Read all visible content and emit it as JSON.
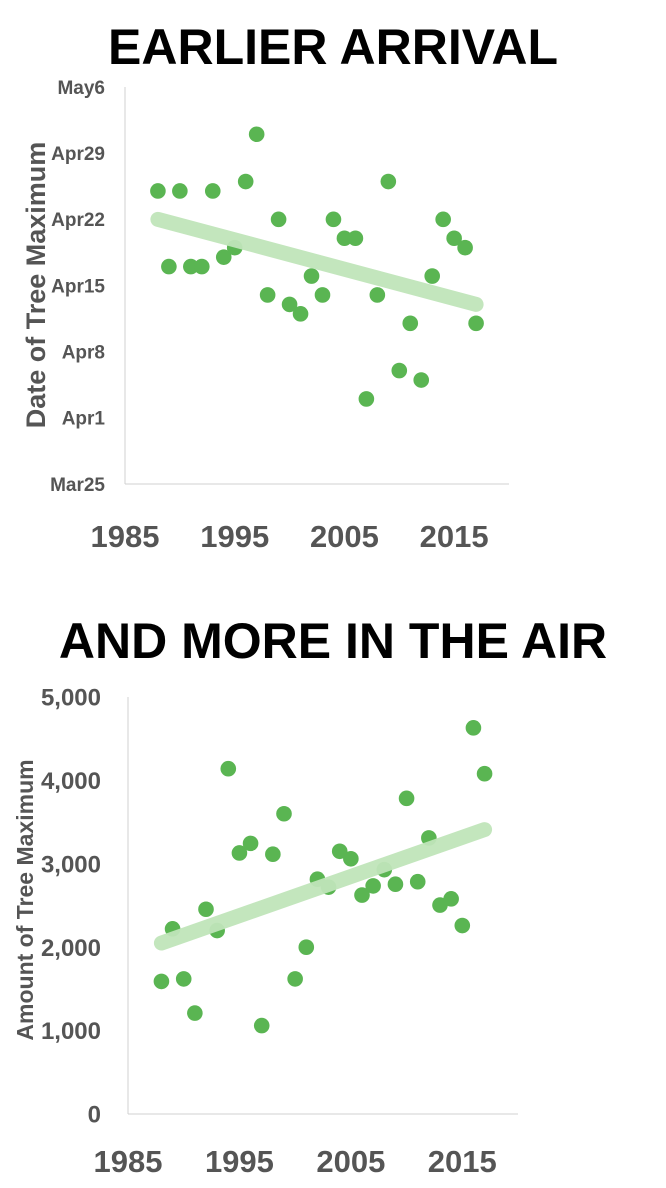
{
  "colors": {
    "point": "#5ab552",
    "trend": "#c0e5b9",
    "axis": "#d0d0d0",
    "text": "#555555",
    "title": "#000000"
  },
  "chart_data": [
    {
      "type": "scatter",
      "title": "EARLIER ARRIVAL",
      "ylabel": "Date of Tree Maximum",
      "xlabel": "",
      "xlim": [
        1985,
        2020
      ],
      "x_ticks": [
        "1985",
        "1995",
        "2005",
        "2015"
      ],
      "y_ticks": [
        "Mar25",
        "Apr1",
        "Apr8",
        "Apr15",
        "Apr22",
        "Apr29",
        "May6"
      ],
      "ylim": [
        "Mar25",
        "May6"
      ],
      "grid": false,
      "x": [
        1988,
        1989,
        1990,
        1991,
        1992,
        1993,
        1994,
        1995,
        1996,
        1997,
        1998,
        1999,
        2000,
        2001,
        2002,
        2003,
        2004,
        2005,
        2006,
        2007,
        2008,
        2009,
        2010,
        2011,
        2012,
        2013,
        2014,
        2015,
        2016,
        2017
      ],
      "y": [
        "Apr25",
        "Apr17",
        "Apr25",
        "Apr17",
        "Apr17",
        "Apr25",
        "Apr18",
        "Apr19",
        "Apr26",
        "May1",
        "Apr14",
        "Apr22",
        "Apr13",
        "Apr12",
        "Apr16",
        "Apr14",
        "Apr22",
        "Apr20",
        "Apr20",
        "Apr3",
        "Apr14",
        "Apr26",
        "Apr6",
        "Apr11",
        "Apr5",
        "Apr16",
        "Apr22",
        "Apr20",
        "Apr19",
        "Apr11"
      ],
      "trendline": {
        "x": [
          1988,
          2017
        ],
        "y": [
          "Apr22",
          "Apr13"
        ]
      }
    },
    {
      "type": "scatter",
      "title": "AND MORE IN THE AIR",
      "ylabel": "Amount of Tree Maximum",
      "xlabel": "",
      "xlim": [
        1985,
        2020
      ],
      "ylim": [
        0,
        5000
      ],
      "x_ticks": [
        "1985",
        "1995",
        "2005",
        "2015"
      ],
      "y_ticks": [
        "0",
        "1,000",
        "2,000",
        "3,000",
        "4,000",
        "5,000"
      ],
      "grid": false,
      "x": [
        1988,
        1989,
        1990,
        1991,
        1992,
        1993,
        1994,
        1995,
        1996,
        1997,
        1998,
        1999,
        2000,
        2001,
        2002,
        2003,
        2004,
        2005,
        2006,
        2007,
        2008,
        2009,
        2010,
        2011,
        2012,
        2013,
        2014,
        2015,
        2016,
        2017
      ],
      "y": [
        1590,
        2220,
        1620,
        1210,
        2455,
        2200,
        4140,
        3130,
        3245,
        1060,
        3115,
        3600,
        1620,
        2000,
        2815,
        2720,
        3150,
        3060,
        2625,
        2735,
        2930,
        2755,
        3785,
        2785,
        3310,
        2505,
        2580,
        2260,
        4630,
        4080
      ],
      "trendline": {
        "x": [
          1988,
          2017
        ],
        "y": [
          2050,
          3410
        ]
      }
    }
  ]
}
